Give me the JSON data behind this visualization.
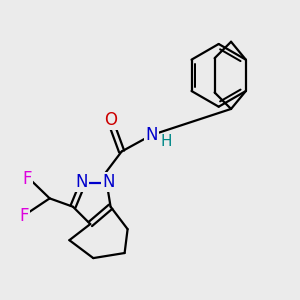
{
  "background_color": "#ebebeb",
  "atom_colors": {
    "C": "#000000",
    "N": "#0000cc",
    "O": "#cc0000",
    "F": "#dd00dd",
    "H": "#008888"
  },
  "bond_width": 1.6,
  "font_size": 12
}
